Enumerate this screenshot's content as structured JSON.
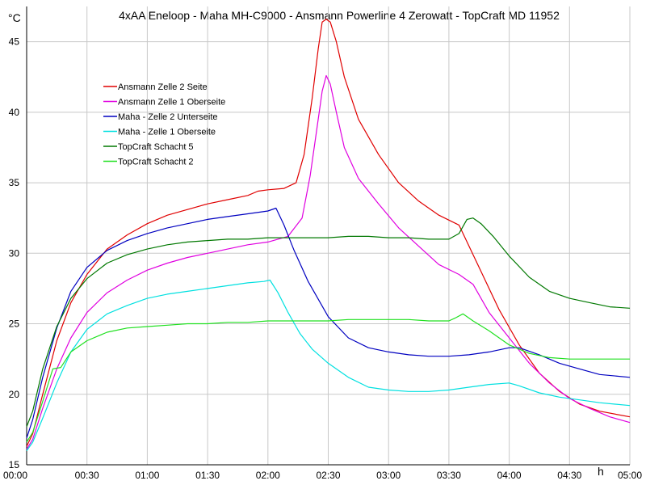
{
  "chart_data": {
    "type": "line",
    "title": "4xAA Eneloop - Maha MH-C9000 - Ansmann Powerline 4 Zerowatt - TopCraft MD 11952",
    "ylabel": "°C",
    "xlabel": "h",
    "xlim": [
      0,
      300
    ],
    "ylim": [
      15,
      47.5
    ],
    "yticks": [
      15,
      20,
      25,
      30,
      35,
      40,
      45
    ],
    "xticks": [
      {
        "min": 0,
        "label": "00:00"
      },
      {
        "min": 30,
        "label": "00:30"
      },
      {
        "min": 60,
        "label": "01:00"
      },
      {
        "min": 90,
        "label": "01:30"
      },
      {
        "min": 120,
        "label": "02:00"
      },
      {
        "min": 150,
        "label": "02:30"
      },
      {
        "min": 180,
        "label": "03:00"
      },
      {
        "min": 210,
        "label": "03:30"
      },
      {
        "min": 240,
        "label": "04:00"
      },
      {
        "min": 270,
        "label": "04:30"
      },
      {
        "min": 300,
        "label": "05:00"
      }
    ],
    "grid": true,
    "legend_position": "upper-left",
    "series": [
      {
        "name": "Ansmann Zelle 2 Seite",
        "color": "#e00000",
        "points": [
          [
            0,
            16.3
          ],
          [
            3,
            17.2
          ],
          [
            8,
            20
          ],
          [
            15,
            23.8
          ],
          [
            22,
            26.5
          ],
          [
            30,
            28.5
          ],
          [
            40,
            30.3
          ],
          [
            50,
            31.3
          ],
          [
            60,
            32.1
          ],
          [
            70,
            32.7
          ],
          [
            80,
            33.1
          ],
          [
            90,
            33.5
          ],
          [
            100,
            33.8
          ],
          [
            110,
            34.1
          ],
          [
            115,
            34.4
          ],
          [
            120,
            34.5
          ],
          [
            128,
            34.6
          ],
          [
            134,
            35
          ],
          [
            138,
            37
          ],
          [
            142,
            41
          ],
          [
            145,
            44.5
          ],
          [
            147,
            46.4
          ],
          [
            149,
            46.6
          ],
          [
            151,
            46.4
          ],
          [
            154,
            45
          ],
          [
            158,
            42.5
          ],
          [
            165,
            39.5
          ],
          [
            175,
            37
          ],
          [
            185,
            35
          ],
          [
            195,
            33.7
          ],
          [
            205,
            32.7
          ],
          [
            215,
            32
          ],
          [
            225,
            29
          ],
          [
            235,
            26
          ],
          [
            245,
            23.5
          ],
          [
            255,
            21.5
          ],
          [
            265,
            20.2
          ],
          [
            275,
            19.3
          ],
          [
            285,
            18.8
          ],
          [
            300,
            18.4
          ]
        ]
      },
      {
        "name": "Ansmann Zelle 1 Oberseite",
        "color": "#e000e0",
        "points": [
          [
            0,
            16.1
          ],
          [
            3,
            16.8
          ],
          [
            8,
            19
          ],
          [
            15,
            21.8
          ],
          [
            22,
            24
          ],
          [
            30,
            25.8
          ],
          [
            40,
            27.2
          ],
          [
            50,
            28.1
          ],
          [
            60,
            28.8
          ],
          [
            70,
            29.3
          ],
          [
            80,
            29.7
          ],
          [
            90,
            30
          ],
          [
            100,
            30.3
          ],
          [
            110,
            30.6
          ],
          [
            120,
            30.8
          ],
          [
            130,
            31.2
          ],
          [
            137,
            32.5
          ],
          [
            141,
            35.5
          ],
          [
            144,
            38.5
          ],
          [
            147,
            41.5
          ],
          [
            149,
            42.6
          ],
          [
            151,
            42
          ],
          [
            154,
            40
          ],
          [
            158,
            37.5
          ],
          [
            165,
            35.3
          ],
          [
            175,
            33.5
          ],
          [
            185,
            31.8
          ],
          [
            195,
            30.5
          ],
          [
            205,
            29.2
          ],
          [
            215,
            28.5
          ],
          [
            222,
            27.8
          ],
          [
            230,
            25.8
          ],
          [
            240,
            24
          ],
          [
            250,
            22.2
          ],
          [
            260,
            20.8
          ],
          [
            270,
            19.7
          ],
          [
            280,
            19
          ],
          [
            290,
            18.4
          ],
          [
            300,
            18
          ]
        ]
      },
      {
        "name": "Maha - Zelle 2 Unterseite",
        "color": "#0000c0",
        "points": [
          [
            0,
            16.9
          ],
          [
            3,
            18.2
          ],
          [
            8,
            21.2
          ],
          [
            15,
            24.7
          ],
          [
            22,
            27.3
          ],
          [
            30,
            29
          ],
          [
            40,
            30.2
          ],
          [
            50,
            30.9
          ],
          [
            60,
            31.4
          ],
          [
            70,
            31.8
          ],
          [
            80,
            32.1
          ],
          [
            90,
            32.4
          ],
          [
            100,
            32.6
          ],
          [
            110,
            32.8
          ],
          [
            120,
            33
          ],
          [
            124,
            33.2
          ],
          [
            128,
            32
          ],
          [
            133,
            30.2
          ],
          [
            140,
            28
          ],
          [
            150,
            25.5
          ],
          [
            160,
            24
          ],
          [
            170,
            23.3
          ],
          [
            180,
            23
          ],
          [
            190,
            22.8
          ],
          [
            200,
            22.7
          ],
          [
            210,
            22.7
          ],
          [
            220,
            22.8
          ],
          [
            230,
            23
          ],
          [
            240,
            23.3
          ],
          [
            245,
            23.3
          ],
          [
            255,
            22.8
          ],
          [
            265,
            22.2
          ],
          [
            275,
            21.8
          ],
          [
            285,
            21.4
          ],
          [
            300,
            21.2
          ]
        ]
      },
      {
        "name": "Maha - Zelle 1 Oberseite",
        "color": "#00e0e0",
        "points": [
          [
            0,
            16
          ],
          [
            3,
            16.6
          ],
          [
            8,
            18.3
          ],
          [
            15,
            20.8
          ],
          [
            22,
            23
          ],
          [
            30,
            24.6
          ],
          [
            40,
            25.7
          ],
          [
            50,
            26.3
          ],
          [
            60,
            26.8
          ],
          [
            70,
            27.1
          ],
          [
            80,
            27.3
          ],
          [
            90,
            27.5
          ],
          [
            100,
            27.7
          ],
          [
            110,
            27.9
          ],
          [
            118,
            28
          ],
          [
            121,
            28.1
          ],
          [
            125,
            27.2
          ],
          [
            130,
            25.8
          ],
          [
            136,
            24.3
          ],
          [
            142,
            23.2
          ],
          [
            150,
            22.2
          ],
          [
            160,
            21.2
          ],
          [
            170,
            20.5
          ],
          [
            180,
            20.3
          ],
          [
            190,
            20.2
          ],
          [
            200,
            20.2
          ],
          [
            210,
            20.3
          ],
          [
            220,
            20.5
          ],
          [
            230,
            20.7
          ],
          [
            240,
            20.8
          ],
          [
            245,
            20.6
          ],
          [
            255,
            20.1
          ],
          [
            265,
            19.8
          ],
          [
            275,
            19.6
          ],
          [
            285,
            19.4
          ],
          [
            300,
            19.2
          ]
        ]
      },
      {
        "name": "TopCraft Schacht 5",
        "color": "#007800",
        "points": [
          [
            0,
            17.7
          ],
          [
            3,
            18.8
          ],
          [
            8,
            21.8
          ],
          [
            15,
            24.8
          ],
          [
            22,
            26.8
          ],
          [
            30,
            28.2
          ],
          [
            40,
            29.3
          ],
          [
            50,
            29.9
          ],
          [
            60,
            30.3
          ],
          [
            70,
            30.6
          ],
          [
            80,
            30.8
          ],
          [
            90,
            30.9
          ],
          [
            100,
            31
          ],
          [
            110,
            31
          ],
          [
            120,
            31.1
          ],
          [
            130,
            31.1
          ],
          [
            140,
            31.1
          ],
          [
            150,
            31.1
          ],
          [
            160,
            31.2
          ],
          [
            170,
            31.2
          ],
          [
            180,
            31.1
          ],
          [
            190,
            31.1
          ],
          [
            200,
            31
          ],
          [
            210,
            31
          ],
          [
            215,
            31.4
          ],
          [
            219,
            32.4
          ],
          [
            222,
            32.5
          ],
          [
            226,
            32.1
          ],
          [
            232,
            31.2
          ],
          [
            240,
            29.8
          ],
          [
            250,
            28.3
          ],
          [
            260,
            27.3
          ],
          [
            270,
            26.8
          ],
          [
            280,
            26.5
          ],
          [
            290,
            26.2
          ],
          [
            300,
            26.1
          ]
        ]
      },
      {
        "name": "TopCraft Schacht 2",
        "color": "#20e020",
        "points": [
          [
            0,
            16.6
          ],
          [
            3,
            17.3
          ],
          [
            8,
            19.5
          ],
          [
            13,
            21.8
          ],
          [
            17,
            21.9
          ],
          [
            22,
            23
          ],
          [
            30,
            23.8
          ],
          [
            40,
            24.4
          ],
          [
            50,
            24.7
          ],
          [
            60,
            24.8
          ],
          [
            70,
            24.9
          ],
          [
            80,
            25
          ],
          [
            90,
            25
          ],
          [
            100,
            25.1
          ],
          [
            110,
            25.1
          ],
          [
            120,
            25.2
          ],
          [
            130,
            25.2
          ],
          [
            140,
            25.2
          ],
          [
            150,
            25.2
          ],
          [
            160,
            25.3
          ],
          [
            170,
            25.3
          ],
          [
            180,
            25.3
          ],
          [
            190,
            25.3
          ],
          [
            200,
            25.2
          ],
          [
            210,
            25.2
          ],
          [
            213,
            25.4
          ],
          [
            217,
            25.7
          ],
          [
            222,
            25.2
          ],
          [
            230,
            24.5
          ],
          [
            240,
            23.5
          ],
          [
            250,
            22.9
          ],
          [
            260,
            22.6
          ],
          [
            270,
            22.5
          ],
          [
            280,
            22.5
          ],
          [
            290,
            22.5
          ],
          [
            300,
            22.5
          ]
        ]
      }
    ]
  }
}
